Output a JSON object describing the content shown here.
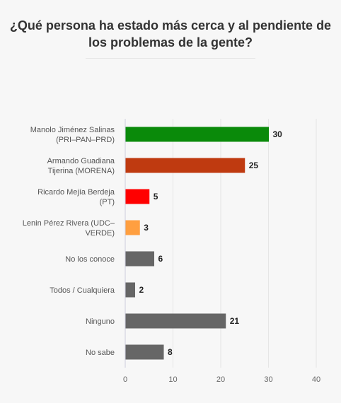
{
  "chart_data": {
    "type": "bar",
    "orientation": "horizontal",
    "title": "¿Qué persona ha estado más cerca y al pendiente de los problemas de la gente?",
    "categories": [
      [
        "Manolo Jiménez Salinas",
        "(PRI–PAN–PRD)"
      ],
      [
        "Armando Guadiana",
        "Tijerina (MORENA)"
      ],
      [
        "Ricardo Mejía Berdeja",
        "(PT)"
      ],
      [
        "Lenin Pérez Rivera (UDC–",
        "VERDE)"
      ],
      [
        "No los conoce"
      ],
      [
        "Todos / Cualquiera"
      ],
      [
        "Ninguno"
      ],
      [
        "No sabe"
      ]
    ],
    "values": [
      30,
      25,
      5,
      3,
      6,
      2,
      21,
      8
    ],
    "colors": [
      "#0a8a0a",
      "#bf3a10",
      "#ff0000",
      "#ff9f40",
      "#666666",
      "#666666",
      "#666666",
      "#666666"
    ],
    "xlim": [
      0,
      40
    ],
    "xticks": [
      0,
      10,
      20,
      30,
      40
    ],
    "grid": true,
    "legend": "none"
  }
}
